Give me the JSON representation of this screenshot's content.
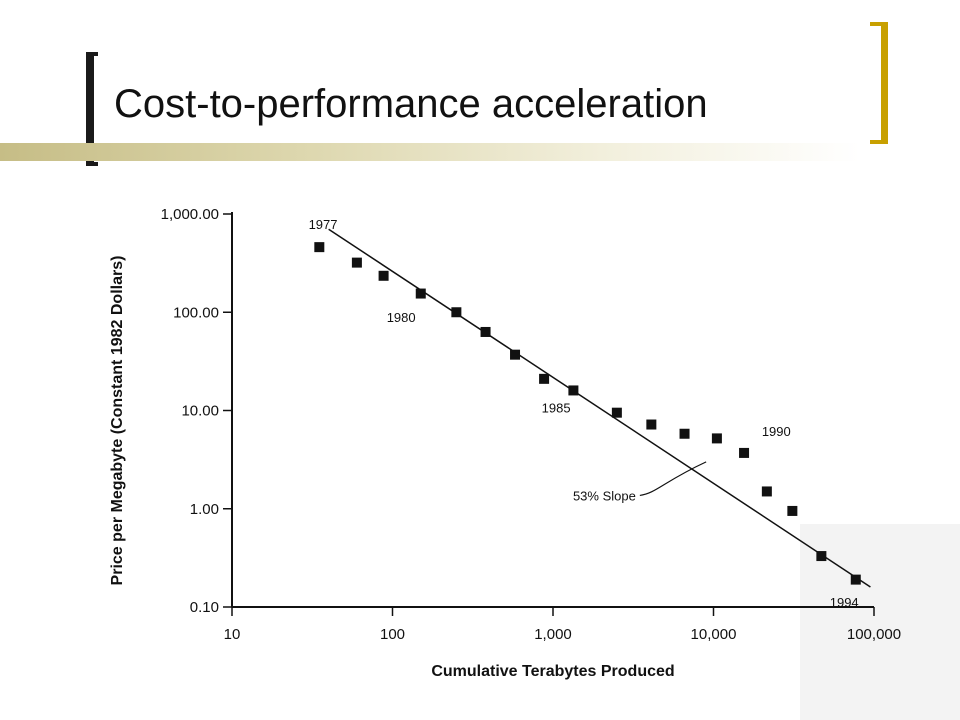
{
  "slide": {
    "title": "Cost-to-performance acceleration"
  },
  "chart_data": {
    "type": "scatter",
    "x_scale": "log",
    "y_scale": "log",
    "xlabel": "Cumulative Terabytes Produced",
    "ylabel": "Price per Megabyte (Constant 1982 Dollars)",
    "xlim": [
      10,
      100000
    ],
    "ylim": [
      0.1,
      1000
    ],
    "x_ticks": [
      {
        "value": 10,
        "label": "10"
      },
      {
        "value": 100,
        "label": "100"
      },
      {
        "value": 1000,
        "label": "1,000"
      },
      {
        "value": 10000,
        "label": "10,000"
      },
      {
        "value": 100000,
        "label": "100,000"
      }
    ],
    "y_ticks": [
      {
        "value": 1000,
        "label": "1,000.00"
      },
      {
        "value": 100,
        "label": "100.00"
      },
      {
        "value": 10,
        "label": "10.00"
      },
      {
        "value": 1,
        "label": "1.00"
      },
      {
        "value": 0.1,
        "label": "0.10"
      }
    ],
    "points": [
      {
        "x": 35,
        "y": 460
      },
      {
        "x": 60,
        "y": 320
      },
      {
        "x": 88,
        "y": 235
      },
      {
        "x": 150,
        "y": 155
      },
      {
        "x": 250,
        "y": 100
      },
      {
        "x": 380,
        "y": 63
      },
      {
        "x": 580,
        "y": 37
      },
      {
        "x": 880,
        "y": 21
      },
      {
        "x": 1340,
        "y": 16
      },
      {
        "x": 2500,
        "y": 9.5
      },
      {
        "x": 4100,
        "y": 7.2
      },
      {
        "x": 6600,
        "y": 5.8
      },
      {
        "x": 10500,
        "y": 5.2
      },
      {
        "x": 15500,
        "y": 3.7
      },
      {
        "x": 21500,
        "y": 1.5
      },
      {
        "x": 31000,
        "y": 0.95
      },
      {
        "x": 47000,
        "y": 0.33
      },
      {
        "x": 77000,
        "y": 0.19
      }
    ],
    "trendline": {
      "label": "53% Slope",
      "from": {
        "x": 40,
        "y": 700
      },
      "to": {
        "x": 95000,
        "y": 0.16
      }
    },
    "year_labels": [
      {
        "text": "1977",
        "x": 30,
        "y": 700
      },
      {
        "text": "1980",
        "x": 92,
        "y": 80
      },
      {
        "text": "1985",
        "x": 850,
        "y": 9.5
      },
      {
        "text": "1990",
        "x": 20000,
        "y": 5.5
      },
      {
        "text": "1994",
        "x": 53000,
        "y": 0.1
      }
    ]
  }
}
